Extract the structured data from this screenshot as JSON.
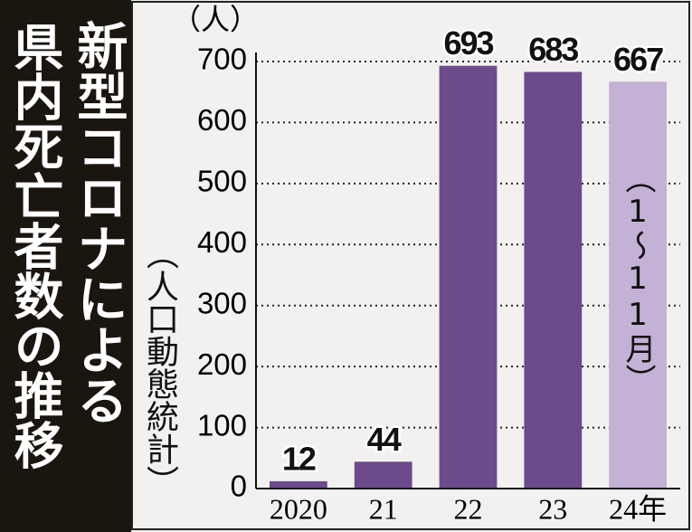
{
  "chart_data": {
    "type": "bar",
    "title_lines": [
      "新型コロナによる",
      "県内死亡者数の推移"
    ],
    "subtitle": "（人口動態統計）",
    "y_unit": "（人）",
    "note": "（1～11月）",
    "categories": [
      "2020",
      "21",
      "22",
      "23",
      "24年"
    ],
    "values": [
      12,
      44,
      693,
      683,
      667
    ],
    "colors": [
      "#6c4a8c",
      "#6c4a8c",
      "#6c4a8c",
      "#6c4a8c",
      "#c3b1d6"
    ],
    "ylim": [
      0,
      700
    ],
    "yticks": [
      0,
      100,
      200,
      300,
      400,
      500,
      600,
      700
    ],
    "grid": true
  }
}
